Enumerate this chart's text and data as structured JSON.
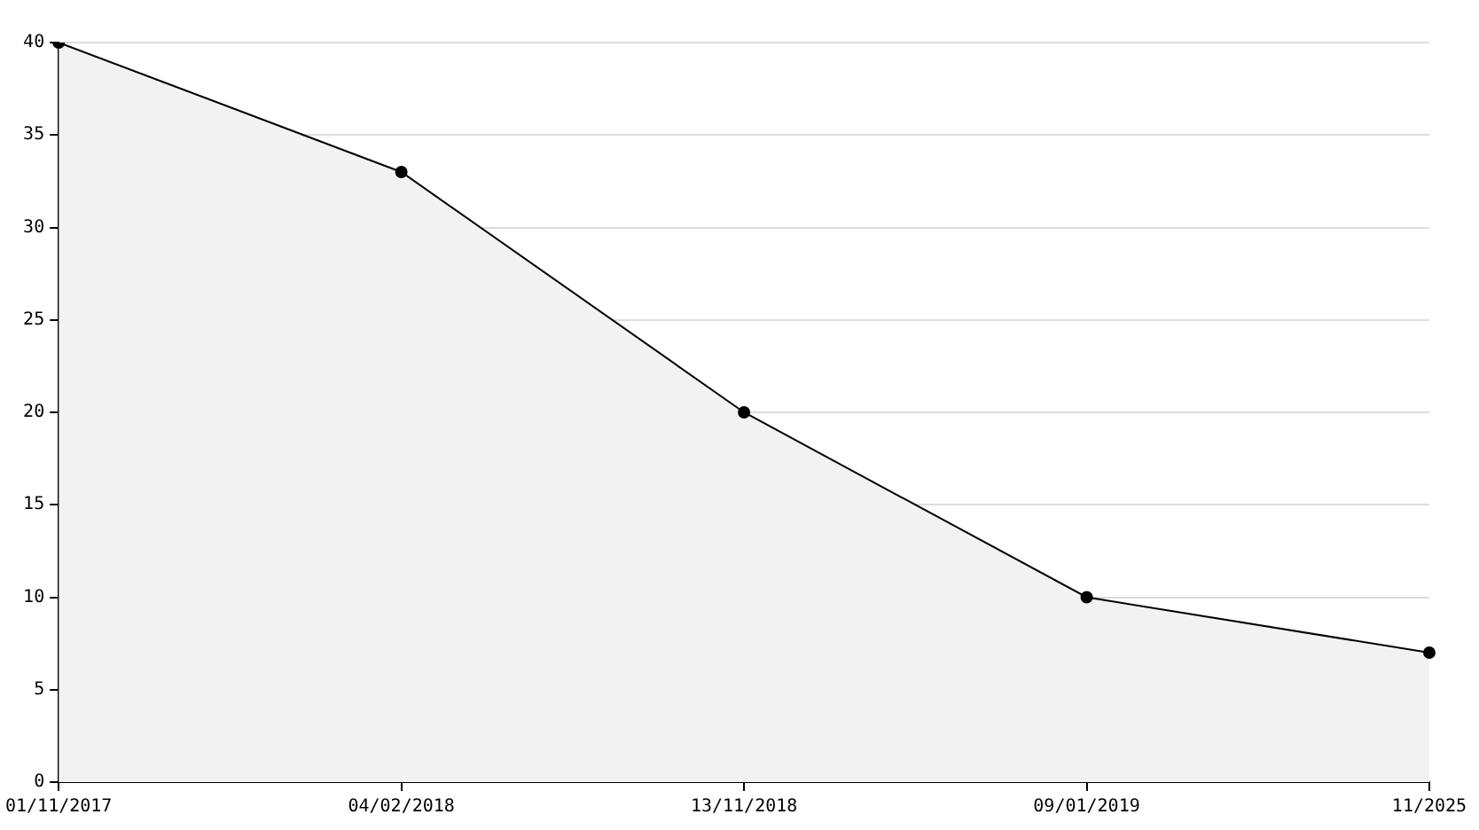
{
  "chart_data": {
    "type": "area",
    "categories": [
      "01/11/2017",
      "04/02/2018",
      "13/11/2018",
      "09/01/2019",
      "11/2025"
    ],
    "series": [
      {
        "color": "#000000",
        "values": [
          40,
          33,
          20,
          10,
          7
        ]
      }
    ],
    "ylim": [
      0,
      40
    ],
    "yticks": [
      0,
      5,
      10,
      15,
      20,
      25,
      30,
      35,
      40
    ],
    "grid": "y",
    "marker": "circle",
    "legend": false
  }
}
